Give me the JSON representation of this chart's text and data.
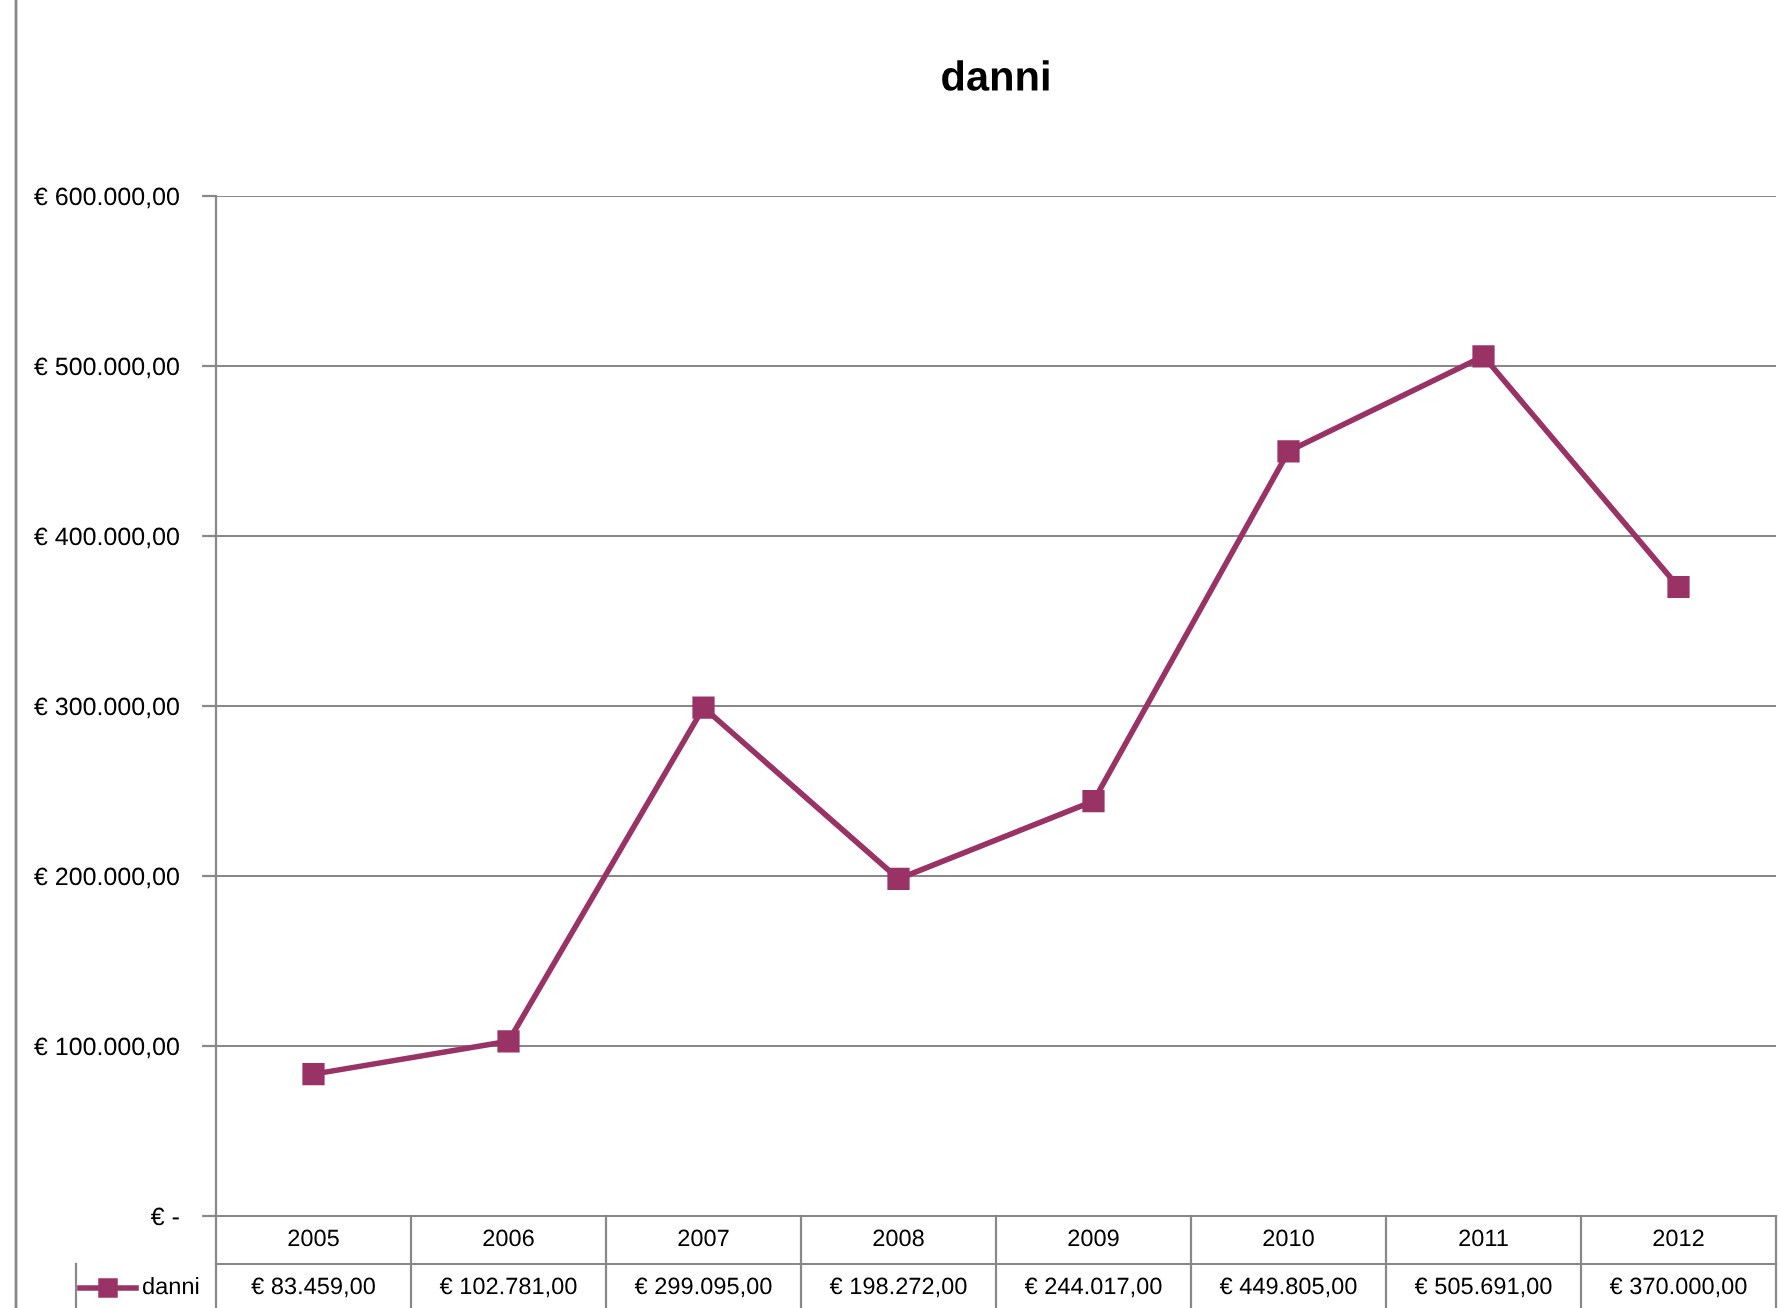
{
  "chart_data": {
    "type": "line",
    "title": "danni",
    "categories": [
      "2005",
      "2006",
      "2007",
      "2008",
      "2009",
      "2010",
      "2011",
      "2012"
    ],
    "series": [
      {
        "name": "danni",
        "color": "#993366",
        "values": [
          83459,
          102781,
          299095,
          198272,
          244017,
          449805,
          505691,
          370000
        ],
        "value_labels": [
          "€ 83.459,00",
          "€ 102.781,00",
          "€ 299.095,00",
          "€ 198.272,00",
          "€ 244.017,00",
          "€ 449.805,00",
          "€ 505.691,00",
          "€ 370.000,00"
        ]
      }
    ],
    "ylim": [
      0,
      600000
    ],
    "yticks": [
      {
        "value": 0,
        "label": "€ -"
      },
      {
        "value": 100000,
        "label": "€ 100.000,00"
      },
      {
        "value": 200000,
        "label": "€ 200.000,00"
      },
      {
        "value": 300000,
        "label": "€ 300.000,00"
      },
      {
        "value": 400000,
        "label": "€ 400.000,00"
      },
      {
        "value": 500000,
        "label": "€ 500.000,00"
      },
      {
        "value": 600000,
        "label": "€ 600.000,00"
      }
    ],
    "grid": "y",
    "legend": "bottom left",
    "marker": "square",
    "line_style": "solid"
  }
}
